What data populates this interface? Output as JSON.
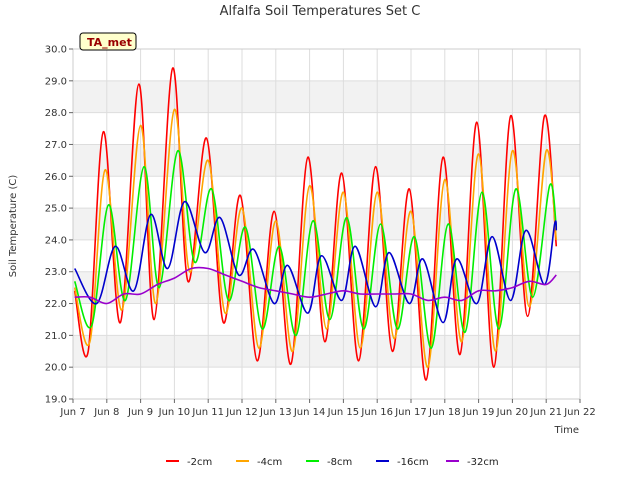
{
  "chart_data": {
    "type": "line",
    "title": "Alfalfa Soil Temperatures Set C",
    "xlabel": "Time",
    "ylabel": "Soil Temperature (C)",
    "annotation": "TA_met",
    "xlim": [
      7.0,
      22.0
    ],
    "ylim": [
      19.0,
      30.0
    ],
    "x_ticks": [
      {
        "value": 7,
        "label": "Jun 7"
      },
      {
        "value": 8,
        "label": "Jun 8"
      },
      {
        "value": 9,
        "label": "Jun 9"
      },
      {
        "value": 10,
        "label": "Jun 10"
      },
      {
        "value": 11,
        "label": "Jun 11"
      },
      {
        "value": 12,
        "label": "Jun 12"
      },
      {
        "value": 13,
        "label": "Jun 13"
      },
      {
        "value": 14,
        "label": "Jun 14"
      },
      {
        "value": 15,
        "label": "Jun 15"
      },
      {
        "value": 16,
        "label": "Jun 16"
      },
      {
        "value": 17,
        "label": "Jun 17"
      },
      {
        "value": 18,
        "label": "Jun 18"
      },
      {
        "value": 19,
        "label": "Jun 19"
      },
      {
        "value": 20,
        "label": "Jun 20"
      },
      {
        "value": 21,
        "label": "Jun 21"
      },
      {
        "value": 22,
        "label": "Jun 22"
      }
    ],
    "y_ticks": [
      {
        "value": 19,
        "label": "19.0"
      },
      {
        "value": 20,
        "label": "20.0"
      },
      {
        "value": 21,
        "label": "21.0"
      },
      {
        "value": 22,
        "label": "22.0"
      },
      {
        "value": 23,
        "label": "23.0"
      },
      {
        "value": 24,
        "label": "24.0"
      },
      {
        "value": 25,
        "label": "25.0"
      },
      {
        "value": 26,
        "label": "26.0"
      },
      {
        "value": 27,
        "label": "27.0"
      },
      {
        "value": 28,
        "label": "28.0"
      },
      {
        "value": 29,
        "label": "29.0"
      },
      {
        "value": 30,
        "label": "30.0"
      }
    ],
    "grid": true,
    "legend_position": "bottom",
    "series": [
      {
        "name": "-2cm",
        "color": "#ff0000",
        "points": [
          [
            7.05,
            22.4
          ],
          [
            7.45,
            20.5
          ],
          [
            7.9,
            27.4
          ],
          [
            8.4,
            21.4
          ],
          [
            8.95,
            28.9
          ],
          [
            9.4,
            21.5
          ],
          [
            9.95,
            29.4
          ],
          [
            10.4,
            22.7
          ],
          [
            10.95,
            27.2
          ],
          [
            11.45,
            21.4
          ],
          [
            11.95,
            25.4
          ],
          [
            12.45,
            20.2
          ],
          [
            12.95,
            24.9
          ],
          [
            13.45,
            20.1
          ],
          [
            13.95,
            26.6
          ],
          [
            14.45,
            20.8
          ],
          [
            14.95,
            26.1
          ],
          [
            15.45,
            20.2
          ],
          [
            15.95,
            26.3
          ],
          [
            16.45,
            20.5
          ],
          [
            16.95,
            25.6
          ],
          [
            17.45,
            19.6
          ],
          [
            17.95,
            26.6
          ],
          [
            18.45,
            20.4
          ],
          [
            18.95,
            27.7
          ],
          [
            19.45,
            20.0
          ],
          [
            19.95,
            27.9
          ],
          [
            20.45,
            21.6
          ],
          [
            20.95,
            27.9
          ],
          [
            21.3,
            23.8
          ]
        ]
      },
      {
        "name": "-4cm",
        "color": "#ffa500",
        "points": [
          [
            7.05,
            22.5
          ],
          [
            7.5,
            20.8
          ],
          [
            7.95,
            26.2
          ],
          [
            8.45,
            21.8
          ],
          [
            9.0,
            27.6
          ],
          [
            9.45,
            22.0
          ],
          [
            10.0,
            28.1
          ],
          [
            10.45,
            23.0
          ],
          [
            11.0,
            26.5
          ],
          [
            11.5,
            21.7
          ],
          [
            12.0,
            25.0
          ],
          [
            12.5,
            20.6
          ],
          [
            13.0,
            24.6
          ],
          [
            13.5,
            20.5
          ],
          [
            14.0,
            25.7
          ],
          [
            14.5,
            21.2
          ],
          [
            15.0,
            25.5
          ],
          [
            15.5,
            20.6
          ],
          [
            16.0,
            25.5
          ],
          [
            16.5,
            20.9
          ],
          [
            17.0,
            24.9
          ],
          [
            17.5,
            20.0
          ],
          [
            18.0,
            25.9
          ],
          [
            18.5,
            20.8
          ],
          [
            19.0,
            26.7
          ],
          [
            19.5,
            20.5
          ],
          [
            20.0,
            26.8
          ],
          [
            20.5,
            21.9
          ],
          [
            21.0,
            26.8
          ],
          [
            21.3,
            24.0
          ]
        ]
      },
      {
        "name": "-8cm",
        "color": "#00ee00",
        "points": [
          [
            7.05,
            22.7
          ],
          [
            7.55,
            21.3
          ],
          [
            8.05,
            25.1
          ],
          [
            8.55,
            22.1
          ],
          [
            9.1,
            26.3
          ],
          [
            9.55,
            22.5
          ],
          [
            10.1,
            26.8
          ],
          [
            10.6,
            23.3
          ],
          [
            11.1,
            25.6
          ],
          [
            11.6,
            22.1
          ],
          [
            12.1,
            24.4
          ],
          [
            12.6,
            21.2
          ],
          [
            13.1,
            23.8
          ],
          [
            13.6,
            21.0
          ],
          [
            14.1,
            24.6
          ],
          [
            14.6,
            21.5
          ],
          [
            15.1,
            24.7
          ],
          [
            15.6,
            21.2
          ],
          [
            16.1,
            24.5
          ],
          [
            16.6,
            21.2
          ],
          [
            17.1,
            24.1
          ],
          [
            17.6,
            20.6
          ],
          [
            18.1,
            24.5
          ],
          [
            18.6,
            21.1
          ],
          [
            19.1,
            25.5
          ],
          [
            19.6,
            21.2
          ],
          [
            20.1,
            25.6
          ],
          [
            20.6,
            22.2
          ],
          [
            21.1,
            25.7
          ],
          [
            21.3,
            24.4
          ]
        ]
      },
      {
        "name": "-16cm",
        "color": "#0000cc",
        "points": [
          [
            7.05,
            23.1
          ],
          [
            7.7,
            22.0
          ],
          [
            8.25,
            23.8
          ],
          [
            8.8,
            22.4
          ],
          [
            9.3,
            24.8
          ],
          [
            9.8,
            23.1
          ],
          [
            10.3,
            25.2
          ],
          [
            10.9,
            23.6
          ],
          [
            11.35,
            24.7
          ],
          [
            11.9,
            22.9
          ],
          [
            12.35,
            23.7
          ],
          [
            12.95,
            22.0
          ],
          [
            13.35,
            23.2
          ],
          [
            13.95,
            21.7
          ],
          [
            14.35,
            23.5
          ],
          [
            14.95,
            22.1
          ],
          [
            15.35,
            23.8
          ],
          [
            15.95,
            21.9
          ],
          [
            16.35,
            23.6
          ],
          [
            16.95,
            22.0
          ],
          [
            17.35,
            23.4
          ],
          [
            17.95,
            21.4
          ],
          [
            18.35,
            23.4
          ],
          [
            18.95,
            22.0
          ],
          [
            19.4,
            24.1
          ],
          [
            19.95,
            22.1
          ],
          [
            20.4,
            24.3
          ],
          [
            20.95,
            22.6
          ],
          [
            21.25,
            24.5
          ],
          [
            21.3,
            24.3
          ]
        ]
      },
      {
        "name": "-32cm",
        "color": "#9900cc",
        "points": [
          [
            7.05,
            22.2
          ],
          [
            7.5,
            22.2
          ],
          [
            8.0,
            22.0
          ],
          [
            8.5,
            22.3
          ],
          [
            9.0,
            22.3
          ],
          [
            9.5,
            22.6
          ],
          [
            10.0,
            22.8
          ],
          [
            10.5,
            23.1
          ],
          [
            11.0,
            23.1
          ],
          [
            11.5,
            22.9
          ],
          [
            12.0,
            22.7
          ],
          [
            12.5,
            22.5
          ],
          [
            13.0,
            22.4
          ],
          [
            13.5,
            22.3
          ],
          [
            14.0,
            22.2
          ],
          [
            14.5,
            22.3
          ],
          [
            15.0,
            22.4
          ],
          [
            15.5,
            22.3
          ],
          [
            16.0,
            22.3
          ],
          [
            16.5,
            22.3
          ],
          [
            17.0,
            22.3
          ],
          [
            17.5,
            22.1
          ],
          [
            18.0,
            22.2
          ],
          [
            18.5,
            22.1
          ],
          [
            19.0,
            22.4
          ],
          [
            19.5,
            22.4
          ],
          [
            20.0,
            22.5
          ],
          [
            20.5,
            22.7
          ],
          [
            21.0,
            22.6
          ],
          [
            21.3,
            22.9
          ]
        ]
      }
    ]
  }
}
